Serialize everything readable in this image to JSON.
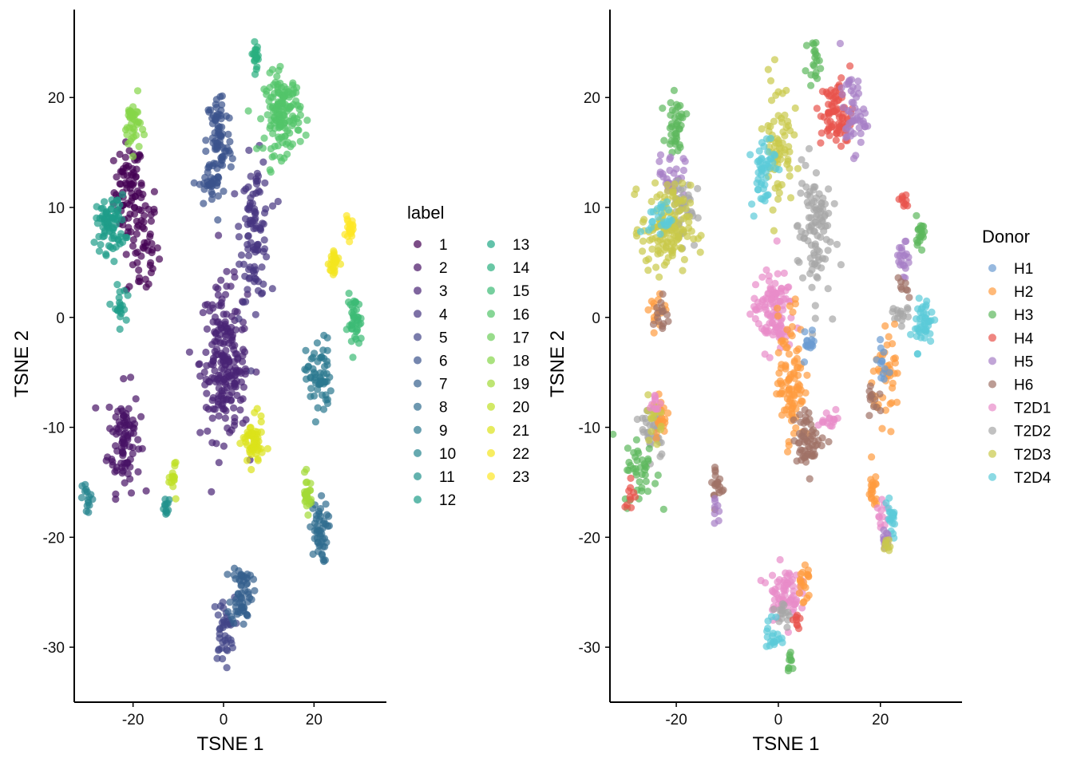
{
  "chart_data": [
    {
      "type": "scatter",
      "xlabel": "TSNE 1",
      "ylabel": "TSNE 2",
      "xlim": [
        -33,
        36
      ],
      "ylim": [
        -35,
        28
      ],
      "xticks": [
        -20,
        0,
        20
      ],
      "yticks": [
        -30,
        -20,
        -10,
        0,
        10,
        20
      ],
      "grid": false,
      "legend": {
        "title": "label",
        "placement": "right",
        "entries": [
          "1",
          "2",
          "3",
          "4",
          "5",
          "6",
          "7",
          "8",
          "9",
          "10",
          "11",
          "12",
          "13",
          "14",
          "15",
          "16",
          "17",
          "18",
          "19",
          "20",
          "21",
          "22",
          "23"
        ],
        "colors": [
          "#440154",
          "#471365",
          "#482475",
          "#463480",
          "#414487",
          "#3B528B",
          "#355F8D",
          "#2F6C8E",
          "#2A788E",
          "#25848E",
          "#21918C",
          "#1E9C89",
          "#20A886",
          "#29AF7F",
          "#3CBB75",
          "#52C569",
          "#6CCD5A",
          "#86D549",
          "#A2DA37",
          "#BFDF25",
          "#DCE319",
          "#F4E61E",
          "#FDE725"
        ]
      },
      "clusters": [
        {
          "x": -21,
          "y": 11.5,
          "sx": 1.6,
          "sy": 2.2,
          "n": 70,
          "series": "1"
        },
        {
          "x": -18,
          "y": 7,
          "sx": 1.8,
          "sy": 3.0,
          "n": 60,
          "series": "1"
        },
        {
          "x": -22,
          "y": -11,
          "sx": 1.8,
          "sy": 2.4,
          "n": 90,
          "series": "2"
        },
        {
          "x": 0,
          "y": -4,
          "sx": 2.6,
          "sy": 3.5,
          "n": 190,
          "series": "3"
        },
        {
          "x": 2,
          "y": -7,
          "sx": 2.0,
          "sy": 1.5,
          "n": 30,
          "series": "3"
        },
        {
          "x": 7,
          "y": 8,
          "sx": 1.6,
          "sy": 3.2,
          "n": 100,
          "series": "4"
        },
        {
          "x": 0,
          "y": -28.5,
          "sx": 1.2,
          "sy": 1.5,
          "n": 40,
          "series": "5"
        },
        {
          "x": -1,
          "y": 16,
          "sx": 1.4,
          "sy": 2.5,
          "n": 80,
          "series": "6"
        },
        {
          "x": -3,
          "y": 12,
          "sx": 1.2,
          "sy": 1.0,
          "n": 30,
          "series": "6"
        },
        {
          "x": 4,
          "y": -25,
          "sx": 1.2,
          "sy": 1.5,
          "n": 60,
          "series": "7"
        },
        {
          "x": 21,
          "y": -19.5,
          "sx": 1.0,
          "sy": 1.4,
          "n": 50,
          "series": "8"
        },
        {
          "x": 21,
          "y": -5.5,
          "sx": 1.4,
          "sy": 1.8,
          "n": 60,
          "series": "9"
        },
        {
          "x": -30,
          "y": -16.5,
          "sx": 0.6,
          "sy": 0.8,
          "n": 15,
          "series": "10"
        },
        {
          "x": -12.5,
          "y": -17.5,
          "sx": 0.6,
          "sy": 0.5,
          "n": 12,
          "series": "11"
        },
        {
          "x": -25,
          "y": 8.5,
          "sx": 1.6,
          "sy": 1.3,
          "n": 80,
          "series": "12"
        },
        {
          "x": -23,
          "y": 0.8,
          "sx": 0.7,
          "sy": 1.0,
          "n": 20,
          "series": "12"
        },
        {
          "x": 7.2,
          "y": 24,
          "sx": 0.5,
          "sy": 0.6,
          "n": 20,
          "series": "14"
        },
        {
          "x": 29,
          "y": -0.5,
          "sx": 0.8,
          "sy": 1.2,
          "n": 40,
          "series": "15"
        },
        {
          "x": 13,
          "y": 18.5,
          "sx": 2.0,
          "sy": 1.8,
          "n": 150,
          "series": "16"
        },
        {
          "x": -20,
          "y": 17.5,
          "sx": 0.9,
          "sy": 1.2,
          "n": 40,
          "series": "18"
        },
        {
          "x": 18.5,
          "y": -16,
          "sx": 0.5,
          "sy": 0.8,
          "n": 25,
          "series": "19"
        },
        {
          "x": -11,
          "y": -14.5,
          "sx": 0.4,
          "sy": 0.8,
          "n": 15,
          "series": "20"
        },
        {
          "x": 6.5,
          "y": -11.5,
          "sx": 1.1,
          "sy": 1.1,
          "n": 60,
          "series": "21"
        },
        {
          "x": 24.5,
          "y": 5,
          "sx": 0.6,
          "sy": 0.8,
          "n": 25,
          "series": "22"
        },
        {
          "x": 27.8,
          "y": 8,
          "sx": 0.4,
          "sy": 0.5,
          "n": 20,
          "series": "23"
        }
      ]
    },
    {
      "type": "scatter",
      "xlabel": "TSNE 1",
      "ylabel": "TSNE 2",
      "xlim": [
        -33,
        36
      ],
      "ylim": [
        -35,
        28
      ],
      "xticks": [
        -20,
        0,
        20
      ],
      "yticks": [
        -30,
        -20,
        -10,
        0,
        10,
        20
      ],
      "grid": false,
      "legend": {
        "title": "Donor",
        "placement": "right",
        "entries": [
          "H1",
          "H2",
          "H3",
          "H4",
          "H5",
          "H6",
          "T2D1",
          "T2D2",
          "T2D3",
          "T2D4"
        ],
        "colors": [
          "#6B9BD1",
          "#FF9B3F",
          "#5CB85C",
          "#E8534B",
          "#A77FC6",
          "#A07266",
          "#E88CC9",
          "#A6A6A6",
          "#C9C94A",
          "#5BCAD8"
        ]
      },
      "clusters": [
        {
          "x": -20,
          "y": 17.5,
          "sx": 0.9,
          "sy": 1.2,
          "n": 40,
          "series": "H3"
        },
        {
          "x": -21,
          "y": 13,
          "sx": 1.3,
          "sy": 1.0,
          "n": 30,
          "series": "H5"
        },
        {
          "x": -19,
          "y": 10,
          "sx": 1.5,
          "sy": 1.6,
          "n": 40,
          "series": "T2D2"
        },
        {
          "x": -22,
          "y": 8,
          "sx": 2.4,
          "sy": 2.0,
          "n": 140,
          "series": "T2D3"
        },
        {
          "x": -23,
          "y": 9,
          "sx": 1.2,
          "sy": 0.8,
          "n": 25,
          "series": "T2D4"
        },
        {
          "x": -24,
          "y": 1,
          "sx": 1.0,
          "sy": 1.0,
          "n": 15,
          "series": "H2"
        },
        {
          "x": -23,
          "y": 0,
          "sx": 0.8,
          "sy": 1.0,
          "n": 15,
          "series": "H6"
        },
        {
          "x": -24.5,
          "y": -10,
          "sx": 1.2,
          "sy": 1.4,
          "n": 40,
          "series": "T2D2"
        },
        {
          "x": -23,
          "y": -9,
          "sx": 0.8,
          "sy": 1.2,
          "n": 20,
          "series": "H2"
        },
        {
          "x": -24,
          "y": -9,
          "sx": 0.8,
          "sy": 1.0,
          "n": 15,
          "series": "T2D3"
        },
        {
          "x": -24,
          "y": -8,
          "sx": 0.6,
          "sy": 0.6,
          "n": 10,
          "series": "T2D1"
        },
        {
          "x": -27,
          "y": -14,
          "sx": 1.6,
          "sy": 1.6,
          "n": 40,
          "series": "H3"
        },
        {
          "x": -29,
          "y": -16,
          "sx": 0.6,
          "sy": 0.8,
          "n": 10,
          "series": "H4"
        },
        {
          "x": -12,
          "y": -15.5,
          "sx": 0.7,
          "sy": 1.2,
          "n": 20,
          "series": "H6"
        },
        {
          "x": -12,
          "y": -17,
          "sx": 0.5,
          "sy": 0.8,
          "n": 8,
          "series": "H5"
        },
        {
          "x": 0,
          "y": 16,
          "sx": 1.4,
          "sy": 3.0,
          "n": 70,
          "series": "T2D3"
        },
        {
          "x": -3,
          "y": 13.5,
          "sx": 1.2,
          "sy": 1.8,
          "n": 50,
          "series": "T2D4"
        },
        {
          "x": 7,
          "y": 23.5,
          "sx": 0.6,
          "sy": 0.8,
          "n": 20,
          "series": "H3"
        },
        {
          "x": 11.5,
          "y": 18.5,
          "sx": 1.6,
          "sy": 1.6,
          "n": 80,
          "series": "H4"
        },
        {
          "x": 14.5,
          "y": 18.5,
          "sx": 1.2,
          "sy": 1.8,
          "n": 50,
          "series": "H5"
        },
        {
          "x": 7,
          "y": 8,
          "sx": 1.6,
          "sy": 3.2,
          "n": 100,
          "series": "T2D2"
        },
        {
          "x": -1,
          "y": 0.5,
          "sx": 2.0,
          "sy": 1.8,
          "n": 110,
          "series": "T2D1"
        },
        {
          "x": 2.5,
          "y": -5.5,
          "sx": 1.3,
          "sy": 3.0,
          "n": 100,
          "series": "H2"
        },
        {
          "x": 6,
          "y": -2.5,
          "sx": 0.6,
          "sy": 0.8,
          "n": 15,
          "series": "H1"
        },
        {
          "x": 6,
          "y": -11,
          "sx": 1.5,
          "sy": 1.2,
          "n": 60,
          "series": "H6"
        },
        {
          "x": 10,
          "y": -9.5,
          "sx": 1.2,
          "sy": 0.6,
          "n": 15,
          "series": "T2D1"
        },
        {
          "x": 1,
          "y": -25,
          "sx": 1.5,
          "sy": 1.2,
          "n": 70,
          "series": "T2D1"
        },
        {
          "x": 5,
          "y": -24,
          "sx": 0.6,
          "sy": 1.0,
          "n": 20,
          "series": "H2"
        },
        {
          "x": 1,
          "y": -27,
          "sx": 0.8,
          "sy": 0.8,
          "n": 15,
          "series": "T2D2"
        },
        {
          "x": 3.5,
          "y": -27.5,
          "sx": 0.5,
          "sy": 0.6,
          "n": 8,
          "series": "H4"
        },
        {
          "x": -1,
          "y": -29,
          "sx": 0.7,
          "sy": 1.0,
          "n": 20,
          "series": "T2D4"
        },
        {
          "x": 2.5,
          "y": -31.5,
          "sx": 0.4,
          "sy": 0.5,
          "n": 10,
          "series": "H3"
        },
        {
          "x": 24.5,
          "y": 10.5,
          "sx": 0.6,
          "sy": 0.6,
          "n": 10,
          "series": "H4"
        },
        {
          "x": 27.8,
          "y": 8,
          "sx": 0.5,
          "sy": 0.6,
          "n": 20,
          "series": "H3"
        },
        {
          "x": 24.5,
          "y": 5,
          "sx": 0.6,
          "sy": 1.0,
          "n": 20,
          "series": "H5"
        },
        {
          "x": 24.5,
          "y": 2.5,
          "sx": 0.5,
          "sy": 0.5,
          "n": 8,
          "series": "H6"
        },
        {
          "x": 24,
          "y": 0,
          "sx": 1.0,
          "sy": 0.8,
          "n": 15,
          "series": "T2D2"
        },
        {
          "x": 28.5,
          "y": -0.5,
          "sx": 0.9,
          "sy": 1.2,
          "n": 45,
          "series": "T2D4"
        },
        {
          "x": 21.5,
          "y": -5.5,
          "sx": 1.6,
          "sy": 1.8,
          "n": 45,
          "series": "H2"
        },
        {
          "x": 20.5,
          "y": -4.5,
          "sx": 0.8,
          "sy": 1.0,
          "n": 12,
          "series": "H1"
        },
        {
          "x": 19,
          "y": -7.5,
          "sx": 0.7,
          "sy": 0.8,
          "n": 12,
          "series": "H6"
        },
        {
          "x": 18.5,
          "y": -16,
          "sx": 0.6,
          "sy": 1.0,
          "n": 20,
          "series": "H2"
        },
        {
          "x": 20.5,
          "y": -18,
          "sx": 0.6,
          "sy": 0.8,
          "n": 12,
          "series": "T2D1"
        },
        {
          "x": 22,
          "y": -18.5,
          "sx": 0.7,
          "sy": 0.8,
          "n": 20,
          "series": "T2D4"
        },
        {
          "x": 21,
          "y": -20.5,
          "sx": 0.5,
          "sy": 0.7,
          "n": 10,
          "series": "H5"
        },
        {
          "x": 21.5,
          "y": -20.8,
          "sx": 0.5,
          "sy": 0.5,
          "n": 8,
          "series": "T2D3"
        }
      ]
    }
  ]
}
